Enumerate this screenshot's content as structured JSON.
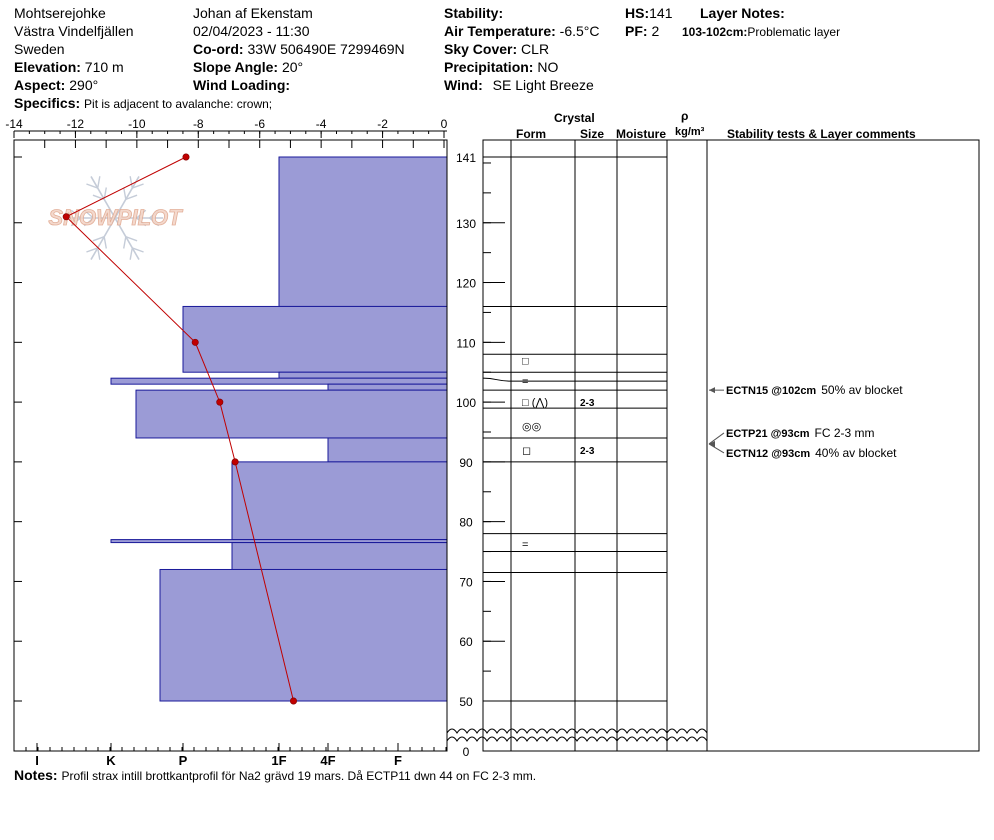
{
  "header": {
    "location": "Mohtserejohke",
    "region": "Västra Vindelfjällen",
    "country": "Sweden",
    "elevation_label": "Elevation:",
    "elevation_value": "710 m",
    "aspect_label": "Aspect:",
    "aspect_value": "290°",
    "observer": "Johan af Ekenstam",
    "datetime": "02/04/2023 - 11:30",
    "coord_label": "Co-ord:",
    "coord_value": "33W 506490E 7299469N",
    "slope_label": "Slope Angle:",
    "slope_value": "20°",
    "wind_loading_label": "Wind Loading:",
    "stability_label": "Stability:",
    "air_temp_label": "Air Temperature:",
    "air_temp_value": "-6.5°C",
    "sky_label": "Sky Cover:",
    "sky_value": "CLR",
    "precip_label": "Precipitation:",
    "precip_value": "NO",
    "wind_label": "Wind:",
    "wind_value": "SE Light Breeze",
    "hs_label": "HS:",
    "hs_value": "141",
    "pf_label": "PF:",
    "pf_value": "2",
    "layer_notes_label": "Layer Notes:",
    "layer_note_depth": "103-102cm:",
    "layer_note_text": "Problematic layer",
    "specifics_label": "Specifics:",
    "specifics_value": "Pit is adjacent to avalanche: crown;"
  },
  "columns": {
    "crystal": "Crystal",
    "form": "Form",
    "size": "Size",
    "moisture": "Moisture",
    "rho": "ρ",
    "density_unit": "kg/m³",
    "comments": "Stability tests & Layer comments"
  },
  "watermark": "SNOWPILOT",
  "notes": {
    "label": "Notes:",
    "text": "Profil strax intill brottkantprofil för Na2 grävd 19 mars. Då ECTP11 dwn 44 on FC 2-3 mm."
  },
  "chart_data": {
    "type": "snow-profile",
    "temperature_axis": {
      "unit": "°C",
      "ticks": [
        -14,
        -12,
        -10,
        -8,
        -6,
        -4,
        -2,
        0
      ],
      "range": [
        -14,
        0
      ]
    },
    "height_axis": {
      "unit": "cm",
      "ticks": [
        141,
        130,
        120,
        110,
        100,
        90,
        80,
        70,
        60,
        50,
        0
      ],
      "visible_range": [
        47,
        144
      ],
      "break_below": 47
    },
    "hardness_axis": {
      "labels": [
        "I",
        "K",
        "P",
        "1F",
        "4F",
        "F"
      ]
    },
    "temperature_profile": [
      {
        "h": 141,
        "t": -8.4
      },
      {
        "h": 131,
        "t": -12.3
      },
      {
        "h": 110,
        "t": -8.1
      },
      {
        "h": 100,
        "t": -7.3
      },
      {
        "h": 90,
        "t": -6.8
      },
      {
        "h": 50,
        "t": -4.9
      }
    ],
    "hardness_layers": [
      {
        "top": 141,
        "bottom": 116,
        "hardness": "1F"
      },
      {
        "top": 116,
        "bottom": 105,
        "hardness": "P"
      },
      {
        "top": 105,
        "bottom": 104,
        "hardness": "1F"
      },
      {
        "top": 104,
        "bottom": 103,
        "hardness": "K"
      },
      {
        "top": 103,
        "bottom": 102,
        "hardness": "4F"
      },
      {
        "top": 102,
        "bottom": 94,
        "hardness": "K+"
      },
      {
        "top": 94,
        "bottom": 90,
        "hardness": "4F"
      },
      {
        "top": 90,
        "bottom": 77,
        "hardness": "1F-"
      },
      {
        "top": 77,
        "bottom": 76.5,
        "hardness": "K"
      },
      {
        "top": 76.5,
        "bottom": 72,
        "hardness": "1F-"
      },
      {
        "top": 72,
        "bottom": 50,
        "hardness": "P-"
      }
    ],
    "layer_boundaries": [
      141,
      116,
      108,
      105,
      104,
      102,
      99,
      94,
      90,
      78,
      75,
      71.5,
      50
    ],
    "grain_rows": [
      {
        "h": 107,
        "form": "□",
        "size": ""
      },
      {
        "h": 103.5,
        "form": "=",
        "size": ""
      },
      {
        "h": 100,
        "form": "□ (⋀)",
        "size": "2-3"
      },
      {
        "h": 96,
        "form": "◎◎",
        "size": ""
      },
      {
        "h": 92,
        "form": "◻",
        "size": "2-3"
      },
      {
        "h": 76.3,
        "form": "=",
        "size": ""
      }
    ],
    "stability_tests": [
      {
        "h": 102,
        "test": "ECTN15 @102cm",
        "comment": "50% av blocket"
      },
      {
        "h": 93,
        "test": "ECTP21 @93cm",
        "comment": "FC 2-3 mm"
      },
      {
        "h": 93,
        "test": "ECTN12 @93cm",
        "comment": "40% av blocket"
      }
    ]
  }
}
